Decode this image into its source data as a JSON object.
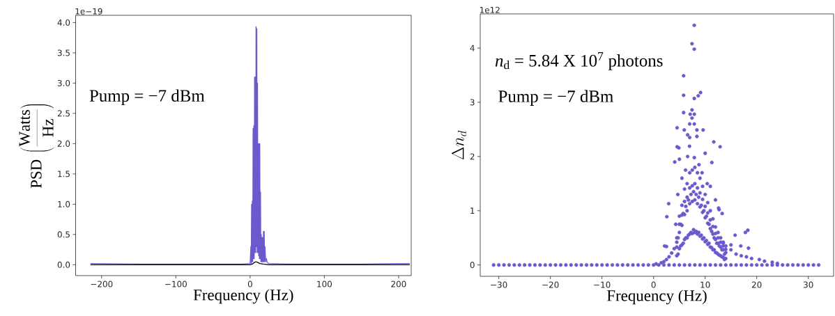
{
  "chart_data": [
    {
      "type": "line",
      "xlabel": "Frequency (Hz)",
      "ylabel": "\\mathrm{PSD}\\,\\left(\\frac{\\mathrm{Watts}}{\\mathrm{Hz}}\\right)",
      "annotations": [
        "1e−19",
        "Pump = −7 dBm"
      ],
      "xlim": [
        -235,
        217
      ],
      "ylim": [
        -0.18,
        4.12
      ],
      "xticks": [
        {
          "value": -200,
          "label": "−200"
        },
        {
          "value": -100,
          "label": "−100"
        },
        0,
        100,
        200
      ],
      "yticks": [
        {
          "value": 0,
          "label": "0.0"
        },
        {
          "value": 0.5,
          "label": "0.5"
        },
        {
          "value": 1,
          "label": "1.0"
        },
        {
          "value": 1.5,
          "label": "1.5"
        },
        {
          "value": 2,
          "label": "2.0"
        },
        {
          "value": 2.5,
          "label": "2.5"
        },
        {
          "value": 3,
          "label": "3.0"
        },
        {
          "value": 3.5,
          "label": "3.5"
        },
        {
          "value": 4,
          "label": "4.0"
        }
      ],
      "series": [
        {
          "color": "#6a5acd",
          "x": [
            -215,
            -150,
            -100,
            -50,
            -10,
            0,
            1,
            1.5,
            2,
            2.5,
            3,
            3.5,
            4,
            4.5,
            5,
            5.5,
            6,
            6.5,
            7,
            7.5,
            8,
            8.5,
            9,
            9.5,
            10,
            10.5,
            11,
            11.5,
            12,
            12.5,
            13,
            13.5,
            14,
            14.5,
            15,
            15.5,
            16,
            16.5,
            17,
            17.5,
            18,
            18.5,
            19,
            19.5,
            20,
            21,
            22,
            23,
            25,
            50,
            100,
            150,
            200,
            215
          ],
          "values": [
            0.02,
            0.01,
            0.01,
            0.01,
            0.01,
            0.02,
            0.3,
            0.02,
            1.0,
            0.05,
            1.05,
            0.05,
            2.25,
            0.1,
            2.3,
            0.1,
            3.1,
            0.2,
            3.1,
            0.2,
            3.93,
            0.3,
            3.9,
            0.2,
            3.0,
            0.2,
            2.0,
            0.15,
            2.0,
            0.1,
            2.0,
            0.1,
            1.2,
            0.05,
            0.5,
            0.05,
            0.45,
            0.05,
            0.45,
            0.05,
            0.55,
            0.05,
            0.55,
            0.05,
            0.3,
            0.05,
            0.1,
            0.04,
            0.02,
            0.01,
            0.01,
            0.01,
            0.02,
            0.02
          ]
        },
        {
          "color": "#000000",
          "x": [
            -215,
            0,
            3,
            6,
            8,
            10,
            13,
            18,
            25,
            215
          ],
          "values": [
            0,
            0,
            0.01,
            0.04,
            0.05,
            0.04,
            0.02,
            0.01,
            0,
            0
          ]
        }
      ]
    },
    {
      "type": "scatter",
      "xlabel": "Frequency (Hz)",
      "ylabel": "\\Delta n_d",
      "annotations": [
        "1e12",
        "*n*$_{d}$ = 5.84 X 10$^{7}$ photons",
        "Pump = −7 dBm"
      ],
      "xlim": [
        -33.6,
        34.9
      ],
      "ylim": [
        -0.21,
        4.63
      ],
      "xticks": [
        {
          "value": -30,
          "label": "−30"
        },
        {
          "value": -20,
          "label": "−20"
        },
        {
          "value": -10,
          "label": "−10"
        },
        0,
        10,
        20,
        30
      ],
      "yticks": [
        0,
        1,
        2,
        3,
        4
      ],
      "marker": "circle",
      "color": "#6a5acd",
      "x": [
        -31,
        -30,
        -29,
        -28,
        -27,
        -26,
        -25,
        -24,
        -23,
        -22,
        -21,
        -20,
        -19,
        -18,
        -17,
        -16,
        -15,
        -14,
        -13,
        -12,
        -11,
        -10,
        -9,
        -8,
        -7,
        -6,
        -5,
        -4,
        -3,
        -2,
        -1,
        0,
        1,
        2,
        3,
        4,
        5,
        6,
        7,
        8,
        9,
        10,
        11,
        12,
        13,
        14,
        15,
        16,
        17,
        18,
        19,
        20,
        21,
        22,
        23,
        24,
        25,
        26,
        27,
        28,
        29,
        30,
        31,
        32,
        0.5,
        1.5,
        2,
        2.5,
        3,
        3.5,
        4,
        20.5,
        21.5,
        23,
        24,
        4.5,
        4.5,
        4.5,
        5,
        5,
        5,
        5.5,
        5.5,
        5.5,
        6,
        6,
        6,
        6.5,
        6.5,
        6.5,
        7,
        7,
        7,
        7.5,
        7.5,
        7.5,
        8,
        8,
        8,
        8.5,
        8.5,
        8.5,
        9,
        9,
        9,
        9.5,
        9.5,
        9.5,
        10,
        10,
        10,
        10.5,
        10.5,
        10.5,
        11,
        11,
        11,
        11.5,
        11.5,
        11.5,
        12,
        12,
        12,
        12.5,
        12.5,
        12.5,
        13,
        13,
        13,
        13.5,
        13.5,
        13.5,
        14,
        14,
        14,
        15,
        16,
        17,
        18,
        19,
        7.89,
        7.45,
        7.89,
        5.82,
        5.82,
        7.89,
        8.66,
        9.11,
        5.82,
        7.45,
        7.1,
        7.9,
        7.45,
        7.0,
        7.9,
        4.56,
        5.95,
        8.4,
        9.6,
        6.6,
        7.0,
        8.4,
        11.67,
        12.9,
        4.56,
        4.9,
        6.97,
        10.0,
        4.1,
        5.0,
        6.6,
        7.9,
        11.3,
        13.3,
        12.7,
        2.57,
        2.93,
        18.27,
        17.8,
        15.8,
        2.13,
        13.5,
        15.0,
        16.9,
        18.4,
        2.5,
        5.5,
        6.2,
        8.8,
        9.4,
        10.4,
        11.0,
        12.0,
        12.6,
        4.7,
        4.3,
        4.5,
        5,
        5.5,
        6,
        6.5,
        7,
        7.5,
        8,
        8.5,
        9,
        9.5,
        10,
        10.5,
        11,
        11.5,
        12,
        12.5,
        13,
        13.5,
        14,
        4.75,
        5.25,
        5.75,
        6.25,
        6.75,
        7.25,
        7.75,
        8.25,
        8.75,
        9.25,
        9.75,
        10.25,
        10.75,
        11.25,
        11.75,
        12.25,
        12.75,
        13.25,
        13.75,
        4.75,
        5.25,
        5.75,
        6.25,
        6.75,
        7.25,
        7.75,
        8.25,
        8.75,
        9.25,
        9.75,
        10.25,
        10.75,
        11.25,
        11.75,
        12.25,
        12.75,
        13.25,
        13.75
      ],
      "values": [
        0,
        0,
        0,
        0,
        0,
        0,
        0,
        0,
        0,
        0,
        0,
        0,
        0,
        0,
        0,
        0,
        0,
        0,
        0,
        0,
        0,
        0,
        0,
        0,
        0,
        0,
        0,
        0,
        0,
        0,
        0,
        0,
        0,
        0,
        0,
        0,
        0,
        0,
        0,
        0,
        0,
        0,
        0,
        0,
        0,
        0,
        0,
        0,
        0,
        0,
        0,
        0,
        0,
        0,
        0,
        0,
        0,
        0,
        0,
        0,
        0,
        0,
        0,
        0,
        0.02,
        0.04,
        0.06,
        0.1,
        0.15,
        0.22,
        0.3,
        0.1,
        0.07,
        0.05,
        0.03,
        0.5,
        0.33,
        0.17,
        0.9,
        0.6,
        0.3,
        1.1,
        0.73,
        0.37,
        1.4,
        0.93,
        0.47,
        1.5,
        1.0,
        0.5,
        1.7,
        1.13,
        0.57,
        1.75,
        1.17,
        0.58,
        1.8,
        1.2,
        0.6,
        1.7,
        1.13,
        0.57,
        1.6,
        1.07,
        0.53,
        1.45,
        0.97,
        0.48,
        1.3,
        0.87,
        0.43,
        1.15,
        0.77,
        0.38,
        1.0,
        0.67,
        0.33,
        0.85,
        0.57,
        0.28,
        0.7,
        0.47,
        0.23,
        0.6,
        0.4,
        0.2,
        0.5,
        0.33,
        0.17,
        0.42,
        0.28,
        0.14,
        0.35,
        0.23,
        0.12,
        0.28,
        0.2,
        0.17,
        0.15,
        0.12,
        4.42,
        4.08,
        3.98,
        3.49,
        3.13,
        3.07,
        3.12,
        3.18,
        2.81,
        2.86,
        2.78,
        2.78,
        2.71,
        2.6,
        2.6,
        2.53,
        2.49,
        2.49,
        2.49,
        2.4,
        2.35,
        2.37,
        2.27,
        2.18,
        2.18,
        2.16,
        2.19,
        2.06,
        1.9,
        1.95,
        2.0,
        1.98,
        1.89,
        0.95,
        1.02,
        0.89,
        1.13,
        0.64,
        0.6,
        0.55,
        0.35,
        0.4,
        0.37,
        0.35,
        0.31,
        0.34,
        1.6,
        1.75,
        1.85,
        1.7,
        1.5,
        1.45,
        1.2,
        1.05,
        1.3,
        0.75,
        0.42,
        0.75,
        0.92,
        1.17,
        1.25,
        1.42,
        1.46,
        1.5,
        1.42,
        1.33,
        1.21,
        1.08,
        0.96,
        0.83,
        0.71,
        0.58,
        0.5,
        0.42,
        0.35,
        0.29,
        0.5,
        0.75,
        0.95,
        1.08,
        1.2,
        1.3,
        1.35,
        1.3,
        1.25,
        1.1,
        1.0,
        0.9,
        0.75,
        0.62,
        0.5,
        0.4,
        0.35,
        0.28,
        0.2,
        0.2,
        0.35,
        0.4,
        0.5,
        0.55,
        0.6,
        0.65,
        0.62,
        0.6,
        0.55,
        0.5,
        0.45,
        0.4,
        0.32,
        0.28,
        0.22,
        0.18,
        0.15,
        0.1
      ]
    }
  ]
}
